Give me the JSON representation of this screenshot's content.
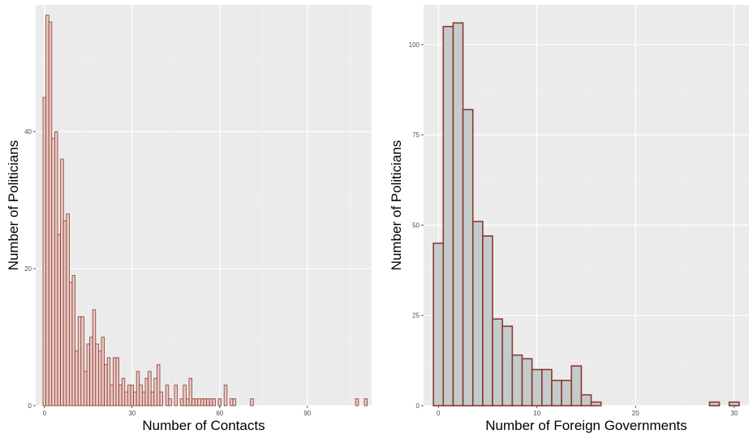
{
  "chart_data": [
    {
      "type": "bar",
      "xlabel": "Number of Contacts",
      "ylabel": "Number of Politicians",
      "xlim": [
        -3,
        112
      ],
      "ylim": [
        0,
        58.5
      ],
      "x_ticks": [
        0,
        30,
        60,
        90
      ],
      "y_ticks": [
        0,
        20,
        40
      ],
      "grid": true,
      "fill_color": "#E8C9C4",
      "edge_color": "#8B3A2F",
      "bin_width": 1,
      "x": [
        0,
        1,
        2,
        3,
        4,
        5,
        6,
        7,
        8,
        9,
        10,
        11,
        12,
        13,
        14,
        15,
        16,
        17,
        18,
        19,
        20,
        21,
        22,
        23,
        24,
        25,
        26,
        27,
        28,
        29,
        30,
        31,
        32,
        33,
        34,
        35,
        36,
        37,
        38,
        39,
        40,
        41,
        42,
        43,
        44,
        45,
        46,
        47,
        48,
        49,
        50,
        51,
        52,
        53,
        54,
        55,
        56,
        57,
        58,
        59,
        60,
        61,
        62,
        63,
        64,
        65,
        66,
        67,
        68,
        69,
        70,
        71,
        72,
        73,
        74,
        75,
        76,
        77,
        78,
        79,
        80,
        81,
        82,
        83,
        84,
        85,
        86,
        87,
        88,
        89,
        90,
        91,
        92,
        93,
        94,
        95,
        96,
        97,
        98,
        99,
        100,
        101,
        102,
        103,
        104,
        105,
        106,
        107,
        108,
        109,
        110
      ],
      "values": [
        45,
        57,
        56,
        39,
        40,
        25,
        36,
        27,
        28,
        18,
        19,
        8,
        13,
        13,
        5,
        9,
        10,
        14,
        9,
        8,
        10,
        6,
        7,
        3,
        7,
        7,
        3,
        4,
        2,
        3,
        3,
        2,
        5,
        3,
        2,
        4,
        5,
        2,
        4,
        6,
        2,
        0,
        3,
        1,
        0,
        3,
        0,
        1,
        3,
        1,
        4,
        1,
        1,
        1,
        1,
        1,
        1,
        1,
        1,
        0,
        1,
        0,
        3,
        0,
        1,
        1,
        0,
        0,
        0,
        0,
        0,
        1,
        0,
        0,
        0,
        0,
        0,
        0,
        0,
        0,
        0,
        0,
        0,
        0,
        0,
        0,
        0,
        0,
        0,
        0,
        0,
        0,
        0,
        0,
        0,
        0,
        0,
        0,
        0,
        0,
        0,
        0,
        0,
        0,
        0,
        0,
        0,
        1,
        0,
        0,
        1
      ]
    },
    {
      "type": "bar",
      "xlabel": "Number of Foreign Governments",
      "ylabel": "Number of Politicians",
      "xlim": [
        -1.5,
        31.5
      ],
      "ylim": [
        0,
        111
      ],
      "x_ticks": [
        0,
        10,
        20,
        30
      ],
      "y_ticks": [
        0,
        25,
        50,
        75,
        100
      ],
      "grid": true,
      "fill_color": "#C4CBCB",
      "edge_color": "#8B3A2F",
      "bin_width": 1,
      "x": [
        0,
        1,
        2,
        3,
        4,
        5,
        6,
        7,
        8,
        9,
        10,
        11,
        12,
        13,
        14,
        15,
        16,
        17,
        18,
        19,
        20,
        21,
        22,
        23,
        24,
        25,
        26,
        27,
        28,
        29,
        30
      ],
      "values": [
        45,
        105,
        106,
        82,
        51,
        47,
        24,
        22,
        14,
        13,
        10,
        10,
        7,
        7,
        11,
        3,
        1,
        0,
        0,
        0,
        0,
        0,
        0,
        0,
        0,
        0,
        0,
        0,
        1,
        0,
        1
      ]
    }
  ]
}
